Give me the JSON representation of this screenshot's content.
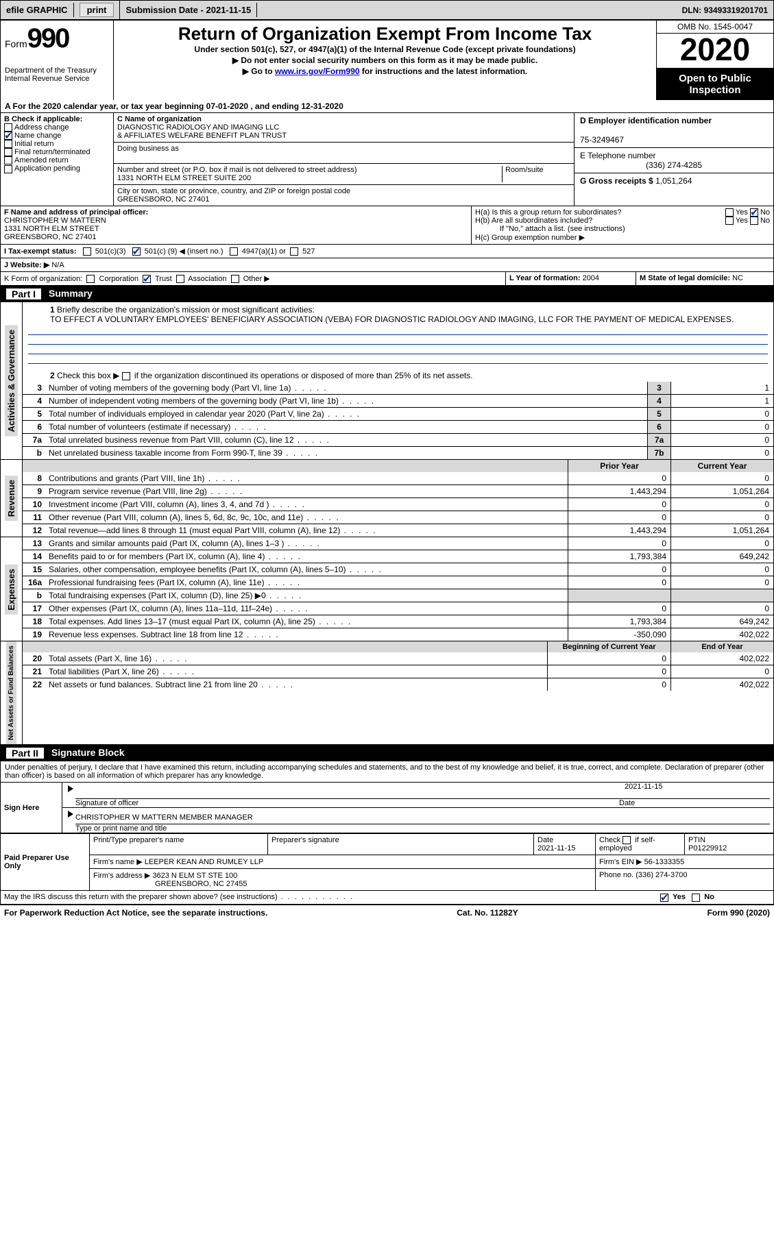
{
  "topbar": {
    "efile": "efile GRAPHIC",
    "print_btn": "print",
    "sub_date_label": "Submission Date - ",
    "sub_date": "2021-11-15",
    "dln_label": "DLN: ",
    "dln": "93493319201701"
  },
  "header": {
    "form_word": "Form",
    "form_num": "990",
    "dept1": "Department of the Treasury",
    "dept2": "Internal Revenue Service",
    "title": "Return of Organization Exempt From Income Tax",
    "subtitle": "Under section 501(c), 527, or 4947(a)(1) of the Internal Revenue Code (except private foundations)",
    "note1": "▶ Do not enter social security numbers on this form as it may be made public.",
    "note2a": "▶ Go to ",
    "note2_link": "www.irs.gov/Form990",
    "note2b": " for instructions and the latest information.",
    "omb": "OMB No. 1545-0047",
    "year": "2020",
    "public1": "Open to Public",
    "public2": "Inspection"
  },
  "lineA": "A For the 2020 calendar year, or tax year beginning 07-01-2020   , and ending 12-31-2020",
  "boxB": {
    "title": "B Check if applicable:",
    "addr": "Address change",
    "name": "Name change",
    "init": "Initial return",
    "final": "Final return/terminated",
    "amend": "Amended return",
    "app": "Application pending"
  },
  "boxC": {
    "label_name": "C Name of organization",
    "org1": "DIAGNOSTIC RADIOLOGY AND IMAGING LLC",
    "org2": "& AFFILIATES WELFARE BENEFIT PLAN TRUST",
    "dba": "Doing business as",
    "label_street": "Number and street (or P.O. box if mail is not delivered to street address)",
    "street": "1331 NORTH ELM STREET SUITE 200",
    "room": "Room/suite",
    "label_city": "City or town, state or province, country, and ZIP or foreign postal code",
    "city": "GREENSBORO, NC  27401"
  },
  "boxD": {
    "d_label": "D Employer identification number",
    "ein": "75-3249467",
    "e_label": "E Telephone number",
    "phone": "(336) 274-4285",
    "g_label": "G Gross receipts $ ",
    "g_val": "1,051,264"
  },
  "boxF": {
    "label": "F Name and address of principal officer:",
    "name": "CHRISTOPHER W MATTERN",
    "street": "1331 NORTH ELM STREET",
    "city": "GREENSBORO, NC  27401"
  },
  "boxH": {
    "ha": "H(a)  Is this a group return for subordinates?",
    "hb": "H(b)  Are all subordinates included?",
    "hb_note": "If \"No,\" attach a list. (see instructions)",
    "hc": "H(c)  Group exemption number ▶",
    "yes": "Yes",
    "no": "No"
  },
  "lineI": {
    "label": "I   Tax-exempt status:",
    "c3": "501(c)(3)",
    "c_open": "501(c) (",
    "c_num": "9",
    "c_close": ") ◀ (insert no.)",
    "a1": "4947(a)(1) or",
    "s527": "527"
  },
  "lineJ": {
    "label": "J   Website: ▶",
    "val": "  N/A"
  },
  "lineK": {
    "label": "K Form of organization:",
    "corp": "Corporation",
    "trust": "Trust",
    "assoc": "Association",
    "other": "Other ▶"
  },
  "lineL": {
    "label": "L Year of formation: ",
    "val": "2004"
  },
  "lineM": {
    "label": "M State of legal domicile: ",
    "val": "NC"
  },
  "part1": {
    "label": "Part I",
    "title": "Summary"
  },
  "sidebar": {
    "ag": "Activities & Governance",
    "rev": "Revenue",
    "exp": "Expenses",
    "net": "Net Assets or Fund Balances"
  },
  "s1": {
    "num": "1",
    "label": "Briefly describe the organization's mission or most significant activities:",
    "text": "TO EFFECT A VOLUNTARY EMPLOYEES' BENEFICIARY ASSOCIATION (VEBA) FOR DIAGNOSTIC RADIOLOGY AND IMAGING, LLC FOR THE PAYMENT OF MEDICAL EXPENSES."
  },
  "s2": {
    "num": "2",
    "text": "Check this box ▶      if the organization discontinued its operations or disposed of more than 25% of its net assets."
  },
  "lines_ag": [
    {
      "n": "3",
      "d": "Number of voting members of the governing body (Part VI, line 1a)",
      "b": "3",
      "v": "1"
    },
    {
      "n": "4",
      "d": "Number of independent voting members of the governing body (Part VI, line 1b)",
      "b": "4",
      "v": "1"
    },
    {
      "n": "5",
      "d": "Total number of individuals employed in calendar year 2020 (Part V, line 2a)",
      "b": "5",
      "v": "0"
    },
    {
      "n": "6",
      "d": "Total number of volunteers (estimate if necessary)",
      "b": "6",
      "v": "0"
    },
    {
      "n": "7a",
      "d": "Total unrelated business revenue from Part VIII, column (C), line 12",
      "b": "7a",
      "v": "0"
    },
    {
      "n": "b",
      "d": "Net unrelated business taxable income from Form 990-T, line 39",
      "b": "7b",
      "v": "0"
    }
  ],
  "col_head": {
    "prior": "Prior Year",
    "curr": "Current Year",
    "boy": "Beginning of Current Year",
    "eoy": "End of Year"
  },
  "lines_rev": [
    {
      "n": "8",
      "d": "Contributions and grants (Part VIII, line 1h)",
      "p": "0",
      "c": "0"
    },
    {
      "n": "9",
      "d": "Program service revenue (Part VIII, line 2g)",
      "p": "1,443,294",
      "c": "1,051,264"
    },
    {
      "n": "10",
      "d": "Investment income (Part VIII, column (A), lines 3, 4, and 7d )",
      "p": "0",
      "c": "0"
    },
    {
      "n": "11",
      "d": "Other revenue (Part VIII, column (A), lines 5, 6d, 8c, 9c, 10c, and 11e)",
      "p": "0",
      "c": "0"
    },
    {
      "n": "12",
      "d": "Total revenue—add lines 8 through 11 (must equal Part VIII, column (A), line 12)",
      "p": "1,443,294",
      "c": "1,051,264"
    }
  ],
  "lines_exp": [
    {
      "n": "13",
      "d": "Grants and similar amounts paid (Part IX, column (A), lines 1–3 )",
      "p": "0",
      "c": "0"
    },
    {
      "n": "14",
      "d": "Benefits paid to or for members (Part IX, column (A), line 4)",
      "p": "1,793,384",
      "c": "649,242"
    },
    {
      "n": "15",
      "d": "Salaries, other compensation, employee benefits (Part IX, column (A), lines 5–10)",
      "p": "0",
      "c": "0"
    },
    {
      "n": "16a",
      "d": "Professional fundraising fees (Part IX, column (A), line 11e)",
      "p": "0",
      "c": "0"
    },
    {
      "n": "b",
      "d": "Total fundraising expenses (Part IX, column (D), line 25) ▶0",
      "p": "",
      "c": "",
      "shade": true
    },
    {
      "n": "17",
      "d": "Other expenses (Part IX, column (A), lines 11a–11d, 11f–24e)",
      "p": "0",
      "c": "0"
    },
    {
      "n": "18",
      "d": "Total expenses. Add lines 13–17 (must equal Part IX, column (A), line 25)",
      "p": "1,793,384",
      "c": "649,242"
    },
    {
      "n": "19",
      "d": "Revenue less expenses. Subtract line 18 from line 12",
      "p": "-350,090",
      "c": "402,022"
    }
  ],
  "lines_net": [
    {
      "n": "20",
      "d": "Total assets (Part X, line 16)",
      "p": "0",
      "c": "402,022"
    },
    {
      "n": "21",
      "d": "Total liabilities (Part X, line 26)",
      "p": "0",
      "c": "0"
    },
    {
      "n": "22",
      "d": "Net assets or fund balances. Subtract line 21 from line 20",
      "p": "0",
      "c": "402,022"
    }
  ],
  "part2": {
    "label": "Part II",
    "title": "Signature Block"
  },
  "jurat": "Under penalties of perjury, I declare that I have examined this return, including accompanying schedules and statements, and to the best of my knowledge and belief, it is true, correct, and complete. Declaration of preparer (other than officer) is based on all information of which preparer has any knowledge.",
  "sign": {
    "here": "Sign Here",
    "sig_label": "Signature of officer",
    "date_label": "Date",
    "date": "2021-11-15",
    "name": "CHRISTOPHER W MATTERN  MEMBER MANAGER",
    "name_label": "Type or print name and title"
  },
  "paid": {
    "title": "Paid Preparer Use Only",
    "pt_name": "Print/Type preparer's name",
    "sig": "Preparer's signature",
    "date_l": "Date",
    "date": "2021-11-15",
    "check_l": "Check       if self-employed",
    "ptin_l": "PTIN",
    "ptin": "P01229912",
    "firm_l": "Firm's name   ▶ ",
    "firm": "LEEPER KEAN AND RUMLEY LLP",
    "ein_l": "Firm's EIN ▶ ",
    "ein": "56-1333355",
    "addr_l": "Firm's address ▶ ",
    "addr1": "3623 N ELM ST STE 100",
    "addr2": "GREENSBORO, NC  27455",
    "phone_l": "Phone no. ",
    "phone": "(336) 274-3700"
  },
  "discuss": {
    "q": "May the IRS discuss this return with the preparer shown above? (see instructions)",
    "yes": "Yes",
    "no": "No"
  },
  "footer": {
    "pra": "For Paperwork Reduction Act Notice, see the separate instructions.",
    "cat": "Cat. No. 11282Y",
    "form": "Form 990 (2020)"
  }
}
